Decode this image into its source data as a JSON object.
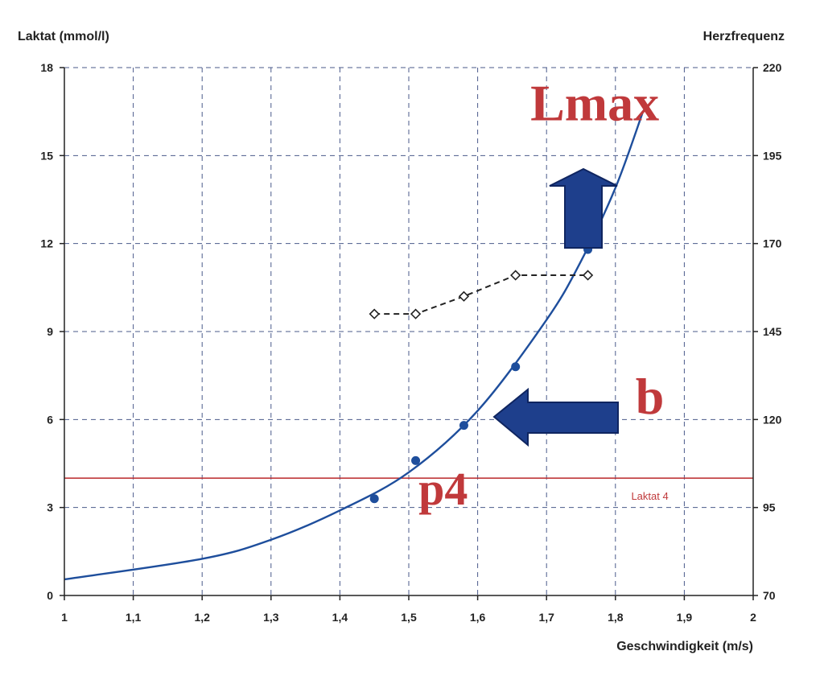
{
  "chart_data": {
    "type": "line",
    "xlabel": "Geschwindigkeit (m/s)",
    "ylabel_left": "Laktat (mmol/l)",
    "ylabel_right": "Herzfrequenz",
    "xlim": [
      1,
      2
    ],
    "ylim_left": [
      0,
      18
    ],
    "ylim_right": [
      70,
      220
    ],
    "x_ticks": [
      "1",
      "1,1",
      "1,2",
      "1,3",
      "1,4",
      "1,5",
      "1,6",
      "1,7",
      "1,8",
      "1,9",
      "2"
    ],
    "y_left_ticks": [
      "0",
      "3",
      "6",
      "9",
      "12",
      "15",
      "18"
    ],
    "y_right_ticks": [
      "70",
      "95",
      "120",
      "145",
      "170",
      "195",
      "220"
    ],
    "grid": true,
    "series": [
      {
        "axis": "left",
        "style": "solid-curve",
        "color": "#1e4e9c",
        "curve": {
          "x": [
            1.0,
            1.2,
            1.3,
            1.4,
            1.5,
            1.6,
            1.7,
            1.75,
            1.8,
            1.84
          ],
          "y": [
            0.55,
            1.25,
            1.9,
            2.9,
            4.2,
            6.3,
            9.4,
            11.4,
            13.9,
            16.5
          ]
        },
        "points": {
          "x": [
            1.45,
            1.51,
            1.58,
            1.655,
            1.76
          ],
          "y": [
            3.3,
            4.6,
            5.8,
            7.8,
            11.8
          ]
        }
      },
      {
        "axis": "right",
        "style": "dashed-diamond",
        "color": "#222222",
        "points": {
          "x": [
            1.45,
            1.51,
            1.58,
            1.655,
            1.76
          ],
          "y": [
            150,
            150,
            155,
            161,
            161
          ]
        }
      }
    ],
    "threshold": {
      "axis": "left",
      "value": 4,
      "label": "Laktat 4",
      "color": "#c0393b"
    },
    "annotations": [
      {
        "text": "Lmax",
        "x": 1.77,
        "y": 16.2
      },
      {
        "text": "b",
        "x": 1.85,
        "y": 6.2
      },
      {
        "text": "p4",
        "x": 1.55,
        "y": 3.1
      }
    ],
    "arrows": [
      {
        "direction": "up",
        "color": "#1e3f8c"
      },
      {
        "direction": "left",
        "color": "#1e3f8c"
      }
    ]
  }
}
